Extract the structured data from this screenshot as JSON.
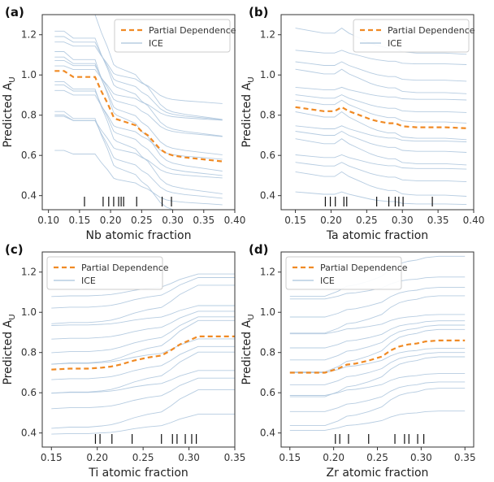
{
  "chart_data": [
    {
      "type": "line",
      "panel_label": "(a)",
      "xlabel": "Nb atomic fraction",
      "ylabel": "Predicted A",
      "ylabel_sub": "U",
      "xlim": [
        0.09,
        0.4
      ],
      "ylim": [
        0.33,
        1.3
      ],
      "xticks": [
        0.1,
        0.15,
        0.2,
        0.25,
        0.3,
        0.35,
        0.4
      ],
      "xtick_labels": [
        "0.10",
        "0.15",
        "0.20",
        "0.25",
        "0.30",
        "0.35",
        "0.40"
      ],
      "yticks": [
        0.4,
        0.6,
        0.8,
        1.0,
        1.2
      ],
      "ytick_labels": [
        "0.4",
        "0.6",
        "0.8",
        "1.0",
        "1.2"
      ],
      "legend": [
        "Partial Dependence",
        "ICE"
      ],
      "legend_position": "top-right",
      "pd": {
        "x": [
          0.11,
          0.125,
          0.14,
          0.155,
          0.175,
          0.185,
          0.195,
          0.205,
          0.21,
          0.22,
          0.23,
          0.24,
          0.25,
          0.26,
          0.28,
          0.29,
          0.3,
          0.32,
          0.35,
          0.38
        ],
        "y": [
          1.02,
          1.02,
          0.99,
          0.99,
          0.99,
          0.92,
          0.86,
          0.79,
          0.78,
          0.77,
          0.76,
          0.75,
          0.72,
          0.7,
          0.63,
          0.61,
          0.6,
          0.59,
          0.58,
          0.57
        ]
      },
      "ice_offsets": [
        -0.3,
        -0.24,
        -0.2,
        -0.15,
        -0.11,
        -0.07,
        -0.04,
        0.02,
        0.05,
        0.09,
        0.12,
        0.16,
        0.19,
        0.22,
        0.26
      ],
      "rug": [
        0.158,
        0.188,
        0.197,
        0.205,
        0.213,
        0.217,
        0.221,
        0.242,
        0.283,
        0.298
      ]
    },
    {
      "type": "line",
      "panel_label": "(b)",
      "xlabel": "Ta atomic fraction",
      "ylabel": "Predicted A",
      "ylabel_sub": "U",
      "xlim": [
        0.13,
        0.4
      ],
      "ylim": [
        0.33,
        1.3
      ],
      "xticks": [
        0.15,
        0.2,
        0.25,
        0.3,
        0.35,
        0.4
      ],
      "xtick_labels": [
        "0.15",
        "0.20",
        "0.25",
        "0.30",
        "0.35",
        "0.40"
      ],
      "yticks": [
        0.4,
        0.6,
        0.8,
        1.0,
        1.2
      ],
      "ytick_labels": [
        "0.4",
        "0.6",
        "0.8",
        "1.0",
        "1.2"
      ],
      "legend": [
        "Partial Dependence",
        "ICE"
      ],
      "legend_position": "top-right",
      "pd": {
        "x": [
          0.15,
          0.17,
          0.19,
          0.205,
          0.215,
          0.225,
          0.24,
          0.255,
          0.265,
          0.28,
          0.29,
          0.3,
          0.32,
          0.36,
          0.39
        ],
        "y": [
          0.84,
          0.83,
          0.82,
          0.82,
          0.84,
          0.82,
          0.8,
          0.78,
          0.77,
          0.76,
          0.76,
          0.745,
          0.74,
          0.74,
          0.735
        ]
      },
      "ice_offsets": [
        -0.4,
        -0.33,
        -0.27,
        -0.22,
        -0.17,
        -0.12,
        -0.08,
        -0.04,
        0.03,
        0.07,
        0.12,
        0.18,
        0.23,
        0.3,
        0.38
      ],
      "rug": [
        0.192,
        0.199,
        0.206,
        0.218,
        0.222,
        0.264,
        0.281,
        0.29,
        0.295,
        0.301,
        0.342
      ]
    },
    {
      "type": "line",
      "panel_label": "(c)",
      "xlabel": "Ti atomic fraction",
      "ylabel": "Predicted A",
      "ylabel_sub": "U",
      "xlim": [
        0.14,
        0.35
      ],
      "ylim": [
        0.33,
        1.3
      ],
      "xticks": [
        0.15,
        0.2,
        0.25,
        0.3,
        0.35
      ],
      "xtick_labels": [
        "0.15",
        "0.20",
        "0.25",
        "0.30",
        "0.35"
      ],
      "yticks": [
        0.4,
        0.6,
        0.8,
        1.0,
        1.2
      ],
      "ytick_labels": [
        "0.4",
        "0.6",
        "0.8",
        "1.0",
        "1.2"
      ],
      "legend": [
        "Partial Dependence",
        "ICE"
      ],
      "legend_position": "top-left",
      "pd": {
        "x": [
          0.15,
          0.17,
          0.19,
          0.205,
          0.215,
          0.225,
          0.24,
          0.255,
          0.27,
          0.28,
          0.29,
          0.3,
          0.31,
          0.33,
          0.35
        ],
        "y": [
          0.715,
          0.72,
          0.72,
          0.725,
          0.73,
          0.74,
          0.76,
          0.775,
          0.785,
          0.81,
          0.84,
          0.86,
          0.88,
          0.88,
          0.88
        ]
      },
      "ice_offsets": [
        -0.35,
        -0.28,
        -0.2,
        -0.14,
        -0.1,
        -0.05,
        0.01,
        0.05,
        0.09,
        0.14,
        0.19,
        0.24,
        0.3,
        0.34
      ],
      "rug": [
        0.198,
        0.203,
        0.216,
        0.238,
        0.27,
        0.282,
        0.287,
        0.296,
        0.303,
        0.308
      ]
    },
    {
      "type": "line",
      "panel_label": "(d)",
      "xlabel": "Zr atomic fraction",
      "ylabel": "Predicted A",
      "ylabel_sub": "U",
      "xlim": [
        0.14,
        0.36
      ],
      "ylim": [
        0.33,
        1.3
      ],
      "xticks": [
        0.15,
        0.2,
        0.25,
        0.3,
        0.35
      ],
      "xtick_labels": [
        "0.15",
        "0.20",
        "0.25",
        "0.30",
        "0.35"
      ],
      "yticks": [
        0.4,
        0.6,
        0.8,
        1.0,
        1.2
      ],
      "ytick_labels": [
        "0.4",
        "0.6",
        "0.8",
        "1.0",
        "1.2"
      ],
      "legend": [
        "Partial Dependence",
        "ICE"
      ],
      "legend_position": "top-left",
      "pd": {
        "x": [
          0.15,
          0.17,
          0.19,
          0.205,
          0.215,
          0.225,
          0.24,
          0.255,
          0.265,
          0.275,
          0.285,
          0.295,
          0.305,
          0.32,
          0.35
        ],
        "y": [
          0.7,
          0.7,
          0.7,
          0.72,
          0.74,
          0.745,
          0.76,
          0.78,
          0.81,
          0.83,
          0.84,
          0.845,
          0.855,
          0.86,
          0.86
        ]
      },
      "ice_offsets": [
        -0.32,
        -0.25,
        -0.2,
        -0.14,
        -0.1,
        -0.06,
        -0.02,
        0.03,
        0.07,
        0.11,
        0.16,
        0.21,
        0.27,
        0.34,
        0.4
      ],
      "rug": [
        0.202,
        0.207,
        0.217,
        0.24,
        0.27,
        0.281,
        0.286,
        0.296,
        0.303
      ]
    }
  ],
  "colors": {
    "pd": "#f08a24",
    "ice": "#a9c3dc",
    "rug": "#111111",
    "axis": "#333333"
  }
}
